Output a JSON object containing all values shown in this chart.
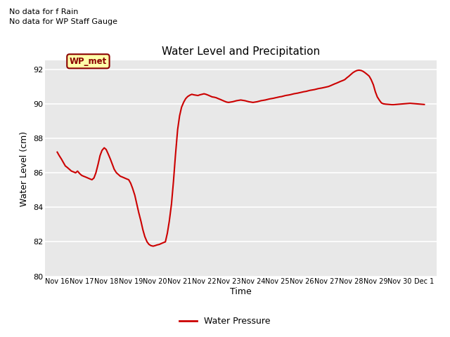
{
  "title": "Water Level and Precipitation",
  "xlabel": "Time",
  "ylabel": "Water Level (cm)",
  "ylim": [
    80,
    92.5
  ],
  "yticks": [
    80,
    82,
    84,
    86,
    88,
    90,
    92
  ],
  "bg_color": "#e8e8e8",
  "line_color": "#cc0000",
  "line_label": "Water Pressure",
  "legend_label": "WP_met",
  "note1": "No data for f Rain",
  "note2": "No data for WP Staff Gauge",
  "x_tick_labels": [
    "Nov 16",
    "Nov 17",
    "Nov 18",
    "Nov 19",
    "Nov 20",
    "Nov 21",
    "Nov 22",
    "Nov 23",
    "Nov 24",
    "Nov 25",
    "Nov 26",
    "Nov 27",
    "Nov 28",
    "Nov 29",
    "Nov 30",
    "Dec 1"
  ],
  "data_x": [
    0.0,
    0.08,
    0.17,
    0.25,
    0.33,
    0.42,
    0.5,
    0.58,
    0.67,
    0.75,
    0.83,
    0.92,
    1.0,
    1.08,
    1.17,
    1.25,
    1.33,
    1.42,
    1.5,
    1.58,
    1.67,
    1.75,
    1.83,
    1.92,
    2.0,
    2.08,
    2.17,
    2.25,
    2.33,
    2.42,
    2.5,
    2.58,
    2.67,
    2.75,
    2.83,
    2.92,
    3.0,
    3.08,
    3.17,
    3.25,
    3.33,
    3.42,
    3.5,
    3.58,
    3.67,
    3.75,
    3.83,
    3.92,
    4.0,
    4.08,
    4.17,
    4.25,
    4.33,
    4.42,
    4.5,
    4.58,
    4.67,
    4.75,
    4.83,
    4.92,
    5.0,
    5.08,
    5.17,
    5.25,
    5.33,
    5.42,
    5.5,
    5.58,
    5.67,
    5.75,
    5.83,
    5.92,
    6.0,
    6.08,
    6.17,
    6.25,
    6.33,
    6.42,
    6.5,
    6.58,
    6.67,
    6.75,
    6.83,
    6.92,
    7.0,
    7.08,
    7.17,
    7.25,
    7.33,
    7.42,
    7.5,
    7.58,
    7.67,
    7.75,
    7.83,
    7.92,
    8.0,
    8.08,
    8.17,
    8.25,
    8.33,
    8.42,
    8.5,
    8.58,
    8.67,
    8.75,
    8.83,
    8.92,
    9.0,
    9.08,
    9.17,
    9.25,
    9.33,
    9.42,
    9.5,
    9.58,
    9.67,
    9.75,
    9.83,
    9.92,
    10.0,
    10.08,
    10.17,
    10.25,
    10.33,
    10.42,
    10.5,
    10.58,
    10.67,
    10.75,
    10.83,
    10.92,
    11.0,
    11.08,
    11.17,
    11.25,
    11.33,
    11.42,
    11.5,
    11.58,
    11.67,
    11.75,
    11.83,
    11.92,
    12.0,
    12.08,
    12.17,
    12.25,
    12.33,
    12.42,
    12.5,
    12.58,
    12.67,
    12.75,
    12.83,
    12.92,
    13.0,
    13.08,
    13.17,
    13.25,
    13.33,
    13.42,
    13.5,
    13.58,
    13.67,
    13.75,
    13.83,
    13.92,
    14.0,
    14.08,
    14.17,
    14.25,
    14.33,
    14.42,
    14.5,
    14.58,
    14.67,
    14.75,
    14.83,
    14.92,
    15.0
  ],
  "data_y": [
    87.2,
    87.0,
    86.8,
    86.6,
    86.4,
    86.3,
    86.2,
    86.1,
    86.05,
    86.0,
    86.1,
    85.95,
    85.85,
    85.8,
    85.75,
    85.7,
    85.65,
    85.6,
    85.7,
    86.0,
    86.5,
    87.0,
    87.3,
    87.45,
    87.35,
    87.1,
    86.8,
    86.5,
    86.2,
    86.0,
    85.9,
    85.8,
    85.75,
    85.7,
    85.65,
    85.6,
    85.4,
    85.1,
    84.7,
    84.2,
    83.7,
    83.2,
    82.7,
    82.3,
    82.0,
    81.85,
    81.78,
    81.75,
    81.78,
    81.82,
    81.85,
    81.9,
    81.95,
    82.0,
    82.5,
    83.2,
    84.2,
    85.5,
    87.0,
    88.5,
    89.3,
    89.8,
    90.1,
    90.3,
    90.42,
    90.5,
    90.55,
    90.52,
    90.5,
    90.48,
    90.52,
    90.55,
    90.58,
    90.55,
    90.5,
    90.45,
    90.4,
    90.38,
    90.35,
    90.3,
    90.25,
    90.2,
    90.15,
    90.1,
    90.08,
    90.1,
    90.12,
    90.15,
    90.18,
    90.2,
    90.22,
    90.2,
    90.18,
    90.15,
    90.12,
    90.1,
    90.08,
    90.1,
    90.12,
    90.15,
    90.18,
    90.2,
    90.22,
    90.25,
    90.28,
    90.3,
    90.32,
    90.35,
    90.38,
    90.4,
    90.42,
    90.45,
    90.48,
    90.5,
    90.52,
    90.55,
    90.58,
    90.6,
    90.62,
    90.65,
    90.68,
    90.7,
    90.72,
    90.75,
    90.78,
    90.8,
    90.82,
    90.85,
    90.88,
    90.9,
    90.92,
    90.95,
    90.98,
    91.0,
    91.05,
    91.1,
    91.15,
    91.2,
    91.25,
    91.3,
    91.35,
    91.4,
    91.5,
    91.6,
    91.7,
    91.8,
    91.88,
    91.93,
    91.95,
    91.93,
    91.88,
    91.8,
    91.7,
    91.6,
    91.4,
    91.1,
    90.7,
    90.4,
    90.2,
    90.05,
    90.0,
    89.98,
    89.97,
    89.96,
    89.95,
    89.95,
    89.96,
    89.97,
    89.98,
    89.99,
    90.0,
    90.01,
    90.02,
    90.03,
    90.02,
    90.01,
    90.0,
    89.99,
    89.98,
    89.97,
    89.96
  ]
}
